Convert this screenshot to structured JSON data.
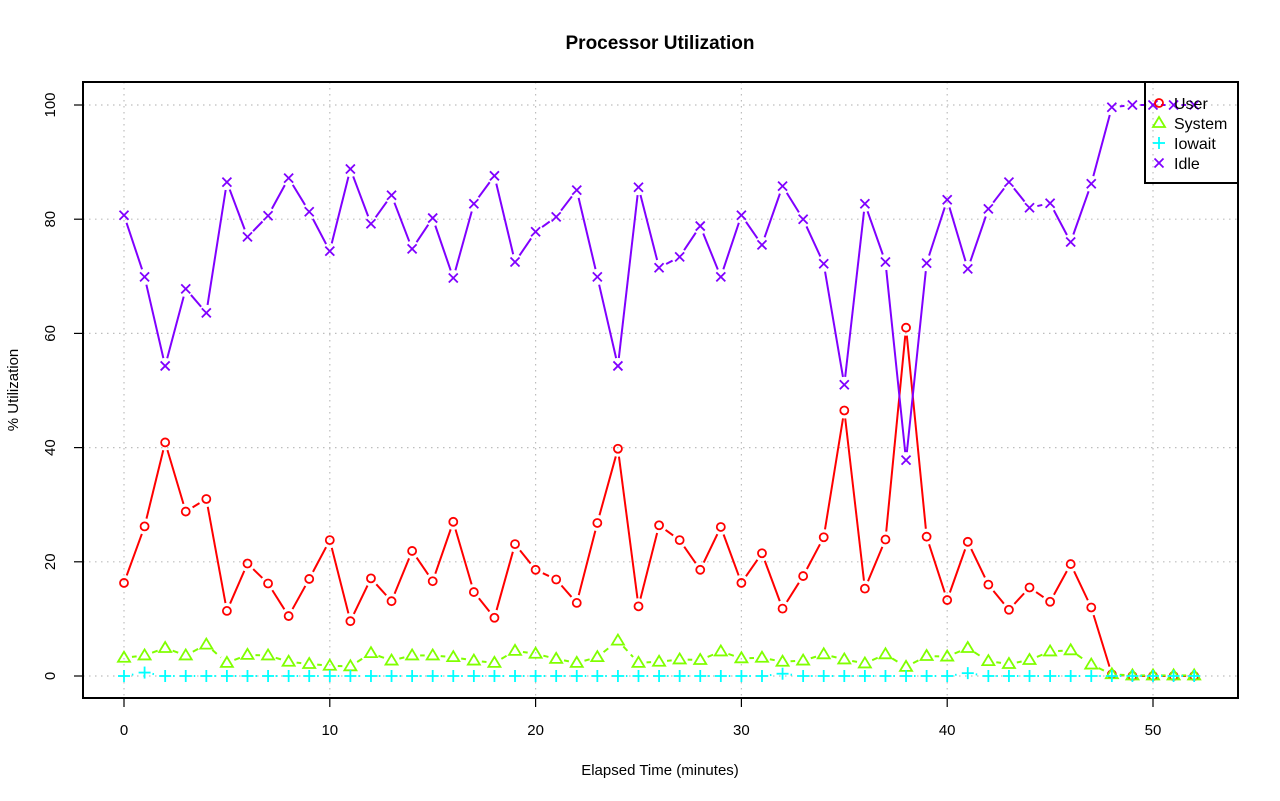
{
  "chart_data": {
    "type": "line",
    "title": "Processor Utilization",
    "xlabel": "Elapsed Time (minutes)",
    "ylabel": "% Utilization",
    "xlim": [
      -2,
      53
    ],
    "ylim": [
      -4,
      104
    ],
    "xticks": [
      0,
      10,
      20,
      30,
      40,
      50
    ],
    "yticks": [
      0,
      20,
      40,
      60,
      80,
      100
    ],
    "xtick_labels": [
      "0",
      "10",
      "20",
      "30",
      "40",
      "50"
    ],
    "ytick_labels": [
      "0",
      "20",
      "40",
      "60",
      "80",
      "100"
    ],
    "grid": true,
    "legend_position": "top-right",
    "x": [
      0,
      1,
      2,
      3,
      4,
      5,
      6,
      7,
      8,
      9,
      10,
      11,
      12,
      13,
      14,
      15,
      16,
      17,
      18,
      19,
      20,
      21,
      22,
      23,
      24,
      25,
      26,
      27,
      28,
      29,
      30,
      31,
      32,
      33,
      34,
      35,
      36,
      37,
      38,
      39,
      40,
      41,
      42,
      43,
      44,
      45,
      46,
      47,
      48,
      49,
      50,
      51,
      52
    ],
    "series": [
      {
        "name": "User",
        "color": "#ff0000",
        "marker": "circle",
        "line": "solid",
        "values": [
          16.3,
          26.2,
          40.9,
          28.8,
          31.0,
          11.4,
          19.7,
          16.2,
          10.5,
          17.0,
          23.8,
          9.6,
          17.1,
          13.1,
          21.9,
          16.6,
          27.0,
          14.7,
          10.2,
          23.1,
          18.6,
          16.9,
          12.8,
          26.8,
          39.8,
          12.2,
          26.4,
          23.8,
          18.6,
          26.1,
          16.3,
          21.5,
          11.8,
          17.5,
          24.3,
          46.5,
          15.3,
          23.9,
          61.0,
          24.4,
          13.3,
          23.5,
          16.0,
          11.6,
          15.5,
          13.0,
          19.6,
          12.0,
          0.3,
          0,
          0,
          0,
          0
        ]
      },
      {
        "name": "System",
        "color": "#80ff00",
        "marker": "triangle",
        "line": "dashed",
        "values": [
          3.2,
          3.6,
          4.9,
          3.6,
          5.5,
          2.3,
          3.7,
          3.6,
          2.5,
          2.1,
          1.8,
          1.7,
          4.0,
          2.7,
          3.6,
          3.6,
          3.3,
          2.7,
          2.3,
          4.4,
          3.9,
          3.0,
          2.3,
          3.3,
          6.2,
          2.3,
          2.5,
          2.9,
          2.8,
          4.3,
          3.1,
          3.2,
          2.5,
          2.7,
          3.8,
          2.9,
          2.2,
          3.8,
          1.6,
          3.5,
          3.4,
          4.9,
          2.6,
          2.1,
          2.8,
          4.3,
          4.5,
          2.0,
          0.3,
          0.1,
          0.1,
          0.1,
          0.1
        ]
      },
      {
        "name": "Iowait",
        "color": "#00ffff",
        "marker": "plus",
        "line": "dashdot",
        "values": [
          0,
          0.6,
          0,
          0,
          0,
          0,
          0,
          0,
          0,
          0,
          0,
          0,
          0,
          0,
          0,
          0,
          0,
          0,
          0,
          0,
          0,
          0,
          0,
          0,
          0,
          0,
          0,
          0,
          0,
          0,
          0,
          0,
          0.4,
          0,
          0,
          0,
          0,
          0,
          0,
          0,
          0,
          0.5,
          0,
          0,
          0,
          0,
          0,
          0,
          0,
          0,
          0,
          0,
          0
        ]
      },
      {
        "name": "Idle",
        "color": "#8000ff",
        "marker": "cross",
        "line": "solid",
        "values": [
          80.7,
          69.9,
          54.3,
          67.8,
          63.6,
          86.5,
          76.9,
          80.6,
          87.2,
          81.3,
          74.4,
          88.8,
          79.2,
          84.2,
          74.8,
          80.2,
          69.7,
          82.7,
          87.6,
          72.5,
          77.8,
          80.4,
          85.1,
          69.9,
          54.3,
          85.6,
          71.5,
          73.4,
          78.8,
          69.9,
          80.7,
          75.5,
          85.8,
          80.0,
          72.2,
          51.0,
          82.7,
          72.5,
          37.8,
          72.3,
          83.4,
          71.3,
          81.8,
          86.5,
          82.0,
          82.8,
          76.0,
          86.2,
          99.6,
          100,
          100,
          100,
          100
        ]
      }
    ]
  }
}
